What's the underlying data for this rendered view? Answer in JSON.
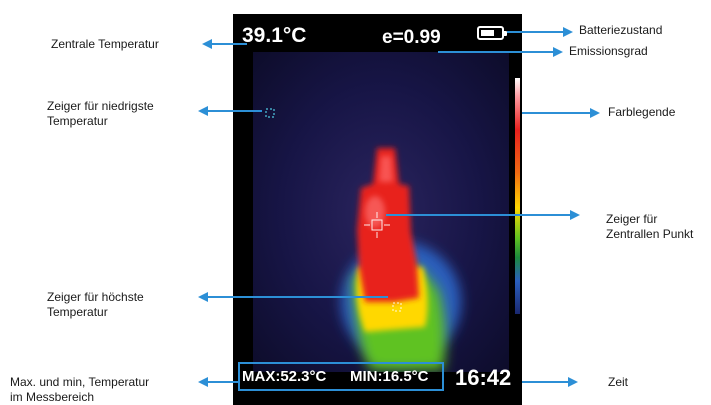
{
  "device": {
    "central_temperature": "39.1°C",
    "emissivity": "e=0.99",
    "battery_level": 0.7,
    "max_temperature": "MAX:52.3°C",
    "min_temperature": "MIN:16.5°C",
    "time": "16:42"
  },
  "labels": {
    "zentrale_temperatur": "Zentrale Temperatur",
    "niedrigste_temperatur": "Zeiger für niedrigste\nTemperatur",
    "hoechste_temperatur": "Zeiger für höchste\nTemperatur",
    "max_min": "Max. und min, Temperatur\nim Messbereich",
    "batteriezustand": "Batteriezustand",
    "emissionsgrad": "Emissionsgrad",
    "farblegende": "Farblegende",
    "zentraler_punkt": "Zeiger für\nZentrallen Punkt",
    "zeit": "Zeit"
  },
  "colors": {
    "arrow": "#2c8fd6",
    "hot": "#e8201d",
    "warm": "#ffd800",
    "mid": "#5fc220",
    "cool": "#2a5fbd",
    "background": "#171546"
  }
}
